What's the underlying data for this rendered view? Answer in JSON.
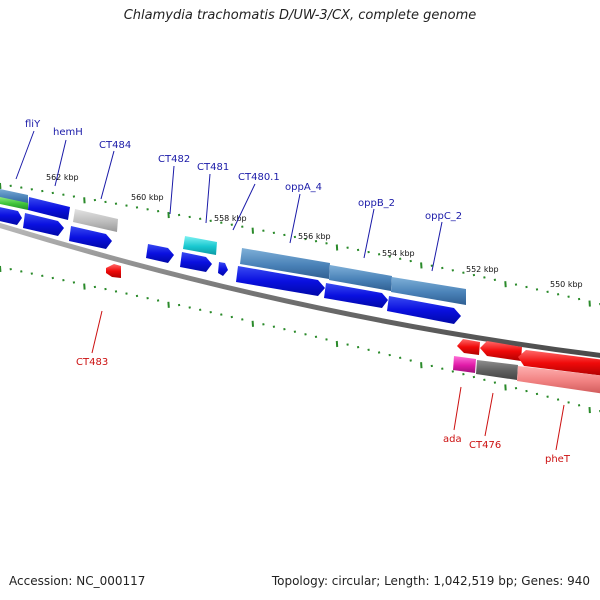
{
  "title": "Chlamydia trachomatis D/UW-3/CX, complete genome",
  "footer": {
    "accession": "Accession: NC_000117",
    "summary": "Topology: circular; Length: 1,042,519 bp; Genes: 940"
  },
  "colors": {
    "forward_label": "#1a1aa8",
    "reverse_label": "#cc1111",
    "cds": "#0b12e0",
    "backbone": "#777777",
    "tick": "#2a8a2a"
  },
  "scale_labels": [
    "562 kbp",
    "560 kbp",
    "558 kbp",
    "556 kbp",
    "554 kbp",
    "552 kbp",
    "550 kbp"
  ],
  "forward_genes": [
    "fliY",
    "hemH",
    "CT484",
    "CT482",
    "CT481",
    "CT480.1",
    "oppA_4",
    "oppB_2",
    "oppC_2"
  ],
  "reverse_genes": [
    "CT483",
    "ada",
    "CT476",
    "pheT"
  ]
}
